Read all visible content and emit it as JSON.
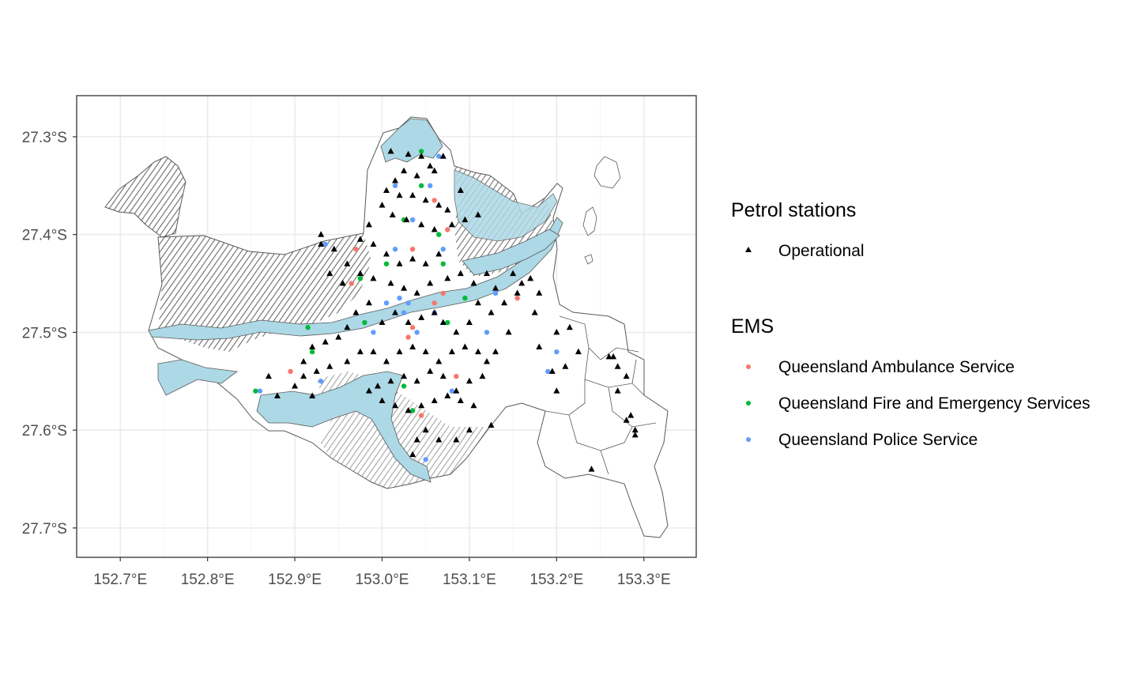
{
  "map": {
    "axes": {
      "x_ticks": [
        "152.7°E",
        "152.8°E",
        "152.9°E",
        "153.0°E",
        "153.1°E",
        "153.2°E",
        "153.3°E"
      ],
      "x_values": [
        152.7,
        152.8,
        152.9,
        153.0,
        153.1,
        153.2,
        153.3
      ],
      "y_ticks": [
        "27.3°S",
        "27.4°S",
        "27.5°S",
        "27.6°S",
        "27.7°S"
      ],
      "y_values": [
        -27.3,
        -27.4,
        -27.5,
        -27.6,
        -27.7
      ],
      "xlim": [
        152.65,
        153.36
      ],
      "ylim": [
        -27.73,
        -27.258
      ],
      "grid": true
    },
    "colors": {
      "water": "#add8e6",
      "waterways": "#595959",
      "boundary": "#595959",
      "ambulance": "#f8766d",
      "fire": "#00ba38",
      "police": "#619cff",
      "petrol": "#000000"
    }
  },
  "legend": {
    "petrol_title": "Petrol stations",
    "petrol_items": [
      {
        "label": "Operational",
        "shape": "triangle",
        "color": "#000000"
      }
    ],
    "ems_title": "EMS",
    "ems_items": [
      {
        "label": "Queensland Ambulance Service",
        "shape": "circle",
        "color": "#f8766d"
      },
      {
        "label": "Queensland Fire and Emergency Services",
        "shape": "circle",
        "color": "#00ba38"
      },
      {
        "label": "Queensland Police Service",
        "shape": "circle",
        "color": "#619cff"
      }
    ]
  },
  "points": {
    "petrol": [
      [
        153.01,
        -27.315
      ],
      [
        153.03,
        -27.318
      ],
      [
        153.045,
        -27.32
      ],
      [
        153.055,
        -27.33
      ],
      [
        153.06,
        -27.335
      ],
      [
        153.07,
        -27.32
      ],
      [
        153.025,
        -27.335
      ],
      [
        153.04,
        -27.34
      ],
      [
        153.015,
        -27.345
      ],
      [
        153.005,
        -27.355
      ],
      [
        153.02,
        -27.36
      ],
      [
        153.035,
        -27.36
      ],
      [
        153.05,
        -27.365
      ],
      [
        153.065,
        -27.37
      ],
      [
        153.075,
        -27.375
      ],
      [
        153.09,
        -27.355
      ],
      [
        153.0,
        -27.37
      ],
      [
        153.012,
        -27.38
      ],
      [
        153.028,
        -27.385
      ],
      [
        153.045,
        -27.39
      ],
      [
        153.06,
        -27.395
      ],
      [
        153.08,
        -27.39
      ],
      [
        153.095,
        -27.385
      ],
      [
        153.11,
        -27.38
      ],
      [
        152.985,
        -27.39
      ],
      [
        152.975,
        -27.405
      ],
      [
        152.99,
        -27.41
      ],
      [
        153.005,
        -27.42
      ],
      [
        153.02,
        -27.43
      ],
      [
        153.035,
        -27.425
      ],
      [
        153.05,
        -27.43
      ],
      [
        153.065,
        -27.42
      ],
      [
        152.93,
        -27.4
      ],
      [
        152.945,
        -27.415
      ],
      [
        152.96,
        -27.43
      ],
      [
        152.94,
        -27.44
      ],
      [
        152.955,
        -27.45
      ],
      [
        152.975,
        -27.44
      ],
      [
        152.99,
        -27.445
      ],
      [
        153.01,
        -27.45
      ],
      [
        153.025,
        -27.455
      ],
      [
        153.04,
        -27.46
      ],
      [
        153.055,
        -27.45
      ],
      [
        153.075,
        -27.445
      ],
      [
        153.09,
        -27.44
      ],
      [
        153.105,
        -27.45
      ],
      [
        153.12,
        -27.44
      ],
      [
        153.13,
        -27.455
      ],
      [
        153.15,
        -27.44
      ],
      [
        153.16,
        -27.45
      ],
      [
        153.17,
        -27.445
      ],
      [
        153.18,
        -27.46
      ],
      [
        153.14,
        -27.47
      ],
      [
        153.125,
        -27.48
      ],
      [
        153.11,
        -27.47
      ],
      [
        153.1,
        -27.49
      ],
      [
        153.085,
        -27.5
      ],
      [
        153.07,
        -27.49
      ],
      [
        153.06,
        -27.48
      ],
      [
        153.045,
        -27.485
      ],
      [
        153.03,
        -27.49
      ],
      [
        153.015,
        -27.48
      ],
      [
        153.0,
        -27.49
      ],
      [
        152.985,
        -27.47
      ],
      [
        152.97,
        -27.48
      ],
      [
        152.96,
        -27.495
      ],
      [
        152.95,
        -27.505
      ],
      [
        152.935,
        -27.51
      ],
      [
        152.92,
        -27.515
      ],
      [
        152.91,
        -27.53
      ],
      [
        152.925,
        -27.54
      ],
      [
        152.94,
        -27.535
      ],
      [
        152.96,
        -27.53
      ],
      [
        152.975,
        -27.52
      ],
      [
        152.99,
        -27.52
      ],
      [
        153.005,
        -27.53
      ],
      [
        153.02,
        -27.52
      ],
      [
        153.035,
        -27.515
      ],
      [
        153.05,
        -27.52
      ],
      [
        153.065,
        -27.53
      ],
      [
        153.08,
        -27.52
      ],
      [
        153.095,
        -27.515
      ],
      [
        153.11,
        -27.52
      ],
      [
        153.12,
        -27.53
      ],
      [
        153.13,
        -27.52
      ],
      [
        153.115,
        -27.545
      ],
      [
        153.1,
        -27.55
      ],
      [
        153.085,
        -27.56
      ],
      [
        153.07,
        -27.545
      ],
      [
        153.055,
        -27.54
      ],
      [
        153.04,
        -27.55
      ],
      [
        153.025,
        -27.545
      ],
      [
        153.01,
        -27.55
      ],
      [
        152.995,
        -27.555
      ],
      [
        152.985,
        -27.56
      ],
      [
        153.0,
        -27.57
      ],
      [
        153.015,
        -27.575
      ],
      [
        153.03,
        -27.58
      ],
      [
        153.045,
        -27.575
      ],
      [
        153.06,
        -27.57
      ],
      [
        153.075,
        -27.565
      ],
      [
        153.09,
        -27.57
      ],
      [
        153.105,
        -27.575
      ],
      [
        153.125,
        -27.595
      ],
      [
        153.05,
        -27.6
      ],
      [
        153.04,
        -27.61
      ],
      [
        153.035,
        -27.625
      ],
      [
        153.065,
        -27.61
      ],
      [
        153.085,
        -27.61
      ],
      [
        153.1,
        -27.6
      ],
      [
        152.88,
        -27.565
      ],
      [
        152.9,
        -27.555
      ],
      [
        152.92,
        -27.565
      ],
      [
        152.87,
        -27.545
      ],
      [
        152.91,
        -27.545
      ],
      [
        153.18,
        -27.515
      ],
      [
        153.2,
        -27.5
      ],
      [
        153.215,
        -27.495
      ],
      [
        153.225,
        -27.52
      ],
      [
        153.21,
        -27.535
      ],
      [
        153.195,
        -27.54
      ],
      [
        153.2,
        -27.56
      ],
      [
        153.26,
        -27.525
      ],
      [
        153.265,
        -27.525
      ],
      [
        153.27,
        -27.535
      ],
      [
        153.28,
        -27.545
      ],
      [
        153.27,
        -27.56
      ],
      [
        153.285,
        -27.585
      ],
      [
        153.28,
        -27.59
      ],
      [
        153.29,
        -27.6
      ],
      [
        153.29,
        -27.605
      ],
      [
        153.24,
        -27.64
      ],
      [
        152.93,
        -27.41
      ],
      [
        153.155,
        -27.46
      ],
      [
        153.175,
        -27.48
      ],
      [
        153.145,
        -27.5
      ]
    ],
    "ambulance": [
      [
        153.06,
        -27.365
      ],
      [
        153.075,
        -27.395
      ],
      [
        152.97,
        -27.415
      ],
      [
        153.035,
        -27.415
      ],
      [
        152.965,
        -27.45
      ],
      [
        153.07,
        -27.46
      ],
      [
        153.06,
        -27.47
      ],
      [
        153.035,
        -27.495
      ],
      [
        153.085,
        -27.545
      ],
      [
        152.895,
        -27.54
      ],
      [
        153.045,
        -27.585
      ],
      [
        153.155,
        -27.465
      ],
      [
        153.03,
        -27.505
      ]
    ],
    "fire": [
      [
        153.045,
        -27.315
      ],
      [
        153.045,
        -27.35
      ],
      [
        153.025,
        -27.385
      ],
      [
        153.065,
        -27.4
      ],
      [
        153.005,
        -27.43
      ],
      [
        153.07,
        -27.43
      ],
      [
        152.975,
        -27.445
      ],
      [
        153.095,
        -27.465
      ],
      [
        152.98,
        -27.49
      ],
      [
        152.915,
        -27.495
      ],
      [
        152.92,
        -27.52
      ],
      [
        153.075,
        -27.49
      ],
      [
        153.025,
        -27.555
      ],
      [
        152.855,
        -27.56
      ],
      [
        153.035,
        -27.58
      ]
    ],
    "police": [
      [
        153.065,
        -27.32
      ],
      [
        153.015,
        -27.35
      ],
      [
        153.055,
        -27.35
      ],
      [
        153.035,
        -27.385
      ],
      [
        153.015,
        -27.415
      ],
      [
        153.07,
        -27.415
      ],
      [
        153.02,
        -27.465
      ],
      [
        153.03,
        -27.47
      ],
      [
        153.005,
        -27.47
      ],
      [
        153.06,
        -27.48
      ],
      [
        153.13,
        -27.46
      ],
      [
        153.025,
        -27.48
      ],
      [
        152.99,
        -27.5
      ],
      [
        153.04,
        -27.5
      ],
      [
        153.12,
        -27.5
      ],
      [
        153.19,
        -27.54
      ],
      [
        153.08,
        -27.56
      ],
      [
        153.05,
        -27.63
      ],
      [
        152.86,
        -27.56
      ],
      [
        152.935,
        -27.41
      ],
      [
        153.2,
        -27.52
      ],
      [
        152.93,
        -27.55
      ]
    ]
  }
}
